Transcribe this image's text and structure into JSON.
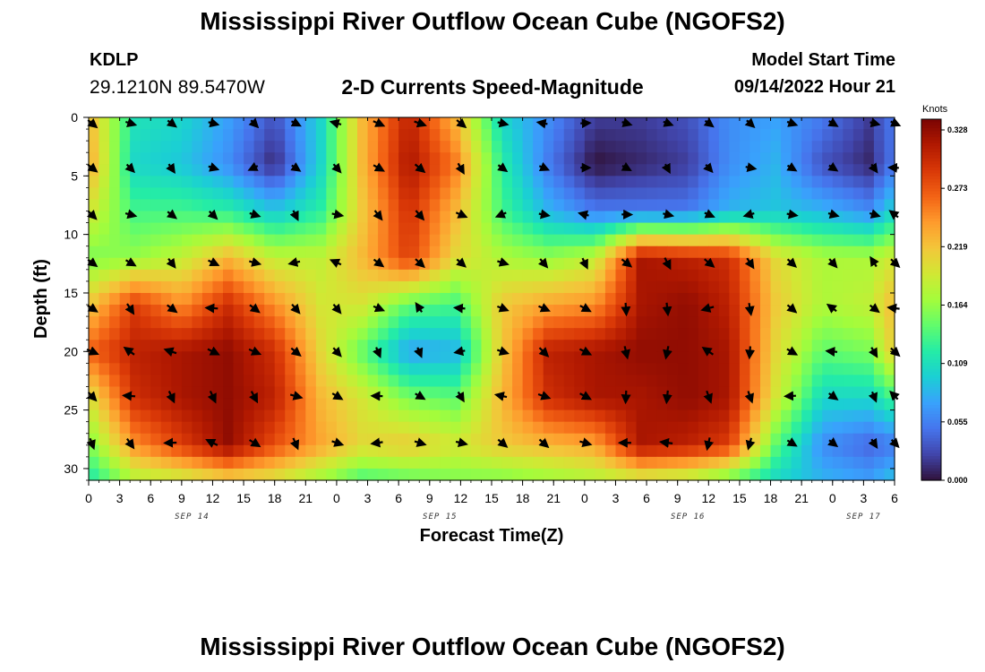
{
  "page": {
    "title": "Mississippi River Outflow Ocean Cube (NGOFS2)",
    "title_repeat": "Mississippi River Outflow Ocean Cube (NGOFS2)",
    "station_id": "KDLP",
    "station_coords": "29.1210N  89.5470W",
    "subtitle": "2-D Currents Speed-Magnitude",
    "model_start_label": "Model Start Time",
    "model_start_value": "09/14/2022 Hour 21"
  },
  "chart_data": {
    "type": "heatmap",
    "title": "2-D Currents Speed-Magnitude",
    "xlabel": "Forecast Time(Z)",
    "ylabel": "Depth (ft)",
    "x_unit": "forecast hours",
    "x_range": [
      0,
      78
    ],
    "y_range": [
      0,
      31
    ],
    "x_tick_labels": [
      "0",
      "3",
      "6",
      "9",
      "12",
      "15",
      "18",
      "21",
      "0",
      "3",
      "6",
      "9",
      "12",
      "15",
      "18",
      "21",
      "0",
      "3",
      "6",
      "9",
      "12",
      "15",
      "18",
      "21",
      "0",
      "3",
      "6"
    ],
    "x_tick_hours": [
      0,
      3,
      6,
      9,
      12,
      15,
      18,
      21,
      24,
      27,
      30,
      33,
      36,
      39,
      42,
      45,
      48,
      51,
      54,
      57,
      60,
      63,
      66,
      69,
      72,
      75,
      78
    ],
    "y_ticks": [
      0,
      5,
      10,
      15,
      20,
      25,
      30
    ],
    "day_labels": [
      {
        "text": "SEP 14",
        "hour": 10
      },
      {
        "text": "SEP 15",
        "hour": 34
      },
      {
        "text": "SEP 16",
        "hour": 58
      },
      {
        "text": "SEP 17",
        "hour": 75
      }
    ],
    "colorbar": {
      "unit": "Knots",
      "ticks": [
        "0.328",
        "0.273",
        "0.219",
        "0.164",
        "0.109",
        "0.055",
        "0.000"
      ],
      "range": [
        0.0,
        0.33
      ],
      "colors": [
        "#30123b",
        "#4145ab",
        "#4675ed",
        "#39a2fc",
        "#1bcfd4",
        "#24eca6",
        "#61fc6c",
        "#a4fc3b",
        "#d1e834",
        "#f3c63a",
        "#fe9b2d",
        "#f36315",
        "#d93807",
        "#b11901",
        "#7a0403"
      ]
    },
    "speed_grid_hours": [
      0,
      4.5,
      9,
      13.5,
      18,
      22.5,
      26.5,
      31,
      35.5,
      40,
      44.5,
      49,
      53.5,
      58,
      62,
      66.5,
      71,
      75.5,
      78
    ],
    "speed_grid_depths": [
      0,
      4,
      8,
      12,
      16,
      20,
      24,
      28,
      31
    ],
    "speed_grid_knots": [
      [
        0.22,
        0.11,
        0.1,
        0.07,
        0.03,
        0.1,
        0.22,
        0.3,
        0.22,
        0.1,
        0.06,
        0.02,
        0.02,
        0.03,
        0.06,
        0.07,
        0.05,
        0.02,
        0.05
      ],
      [
        0.23,
        0.1,
        0.09,
        0.06,
        0.01,
        0.1,
        0.22,
        0.31,
        0.25,
        0.12,
        0.05,
        0.0,
        0.01,
        0.02,
        0.06,
        0.08,
        0.03,
        0.01,
        0.05
      ],
      [
        0.19,
        0.13,
        0.13,
        0.12,
        0.09,
        0.12,
        0.21,
        0.29,
        0.22,
        0.13,
        0.08,
        0.05,
        0.05,
        0.05,
        0.08,
        0.09,
        0.08,
        0.06,
        0.1
      ],
      [
        0.15,
        0.16,
        0.18,
        0.22,
        0.18,
        0.18,
        0.22,
        0.28,
        0.2,
        0.17,
        0.16,
        0.18,
        0.31,
        0.3,
        0.29,
        0.2,
        0.17,
        0.17,
        0.19
      ],
      [
        0.21,
        0.28,
        0.24,
        0.29,
        0.24,
        0.19,
        0.19,
        0.14,
        0.13,
        0.21,
        0.23,
        0.24,
        0.31,
        0.32,
        0.3,
        0.21,
        0.17,
        0.18,
        0.22
      ],
      [
        0.26,
        0.3,
        0.31,
        0.32,
        0.29,
        0.2,
        0.14,
        0.07,
        0.08,
        0.21,
        0.3,
        0.31,
        0.32,
        0.32,
        0.31,
        0.2,
        0.14,
        0.15,
        0.21
      ],
      [
        0.19,
        0.29,
        0.31,
        0.32,
        0.3,
        0.22,
        0.19,
        0.15,
        0.14,
        0.22,
        0.29,
        0.31,
        0.31,
        0.32,
        0.31,
        0.19,
        0.1,
        0.1,
        0.13
      ],
      [
        0.15,
        0.24,
        0.28,
        0.32,
        0.27,
        0.23,
        0.2,
        0.21,
        0.19,
        0.21,
        0.22,
        0.23,
        0.31,
        0.3,
        0.28,
        0.14,
        0.06,
        0.04,
        0.05
      ],
      [
        0.11,
        0.17,
        0.18,
        0.2,
        0.19,
        0.16,
        0.13,
        0.14,
        0.15,
        0.15,
        0.16,
        0.17,
        0.18,
        0.17,
        0.14,
        0.1,
        0.08,
        0.07,
        0.09
      ]
    ],
    "vector_rows_depth": [
      0.5,
      4.3,
      8.3,
      12.4,
      16.3,
      20.0,
      23.8,
      27.8
    ],
    "vector_cols_hour": [
      0.3,
      4,
      8,
      12,
      16,
      20,
      24,
      28,
      32,
      36,
      40,
      44,
      48,
      52,
      56,
      60,
      64,
      68,
      72,
      76,
      78
    ]
  }
}
